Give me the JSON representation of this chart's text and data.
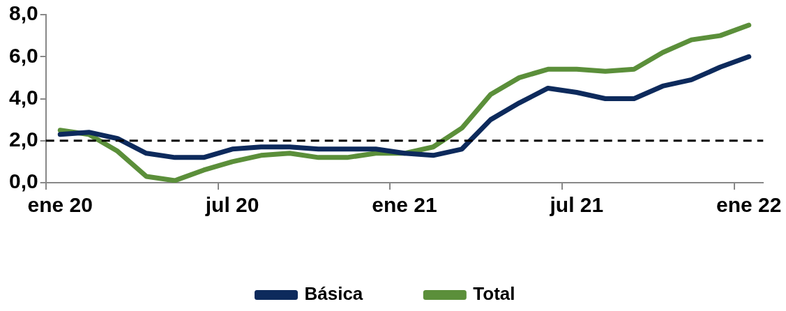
{
  "chart_data": {
    "type": "line",
    "categories": [
      "ene 20",
      null,
      null,
      null,
      null,
      null,
      "jul 20",
      null,
      null,
      null,
      null,
      null,
      "ene 21",
      null,
      null,
      null,
      null,
      null,
      "jul 21",
      null,
      null,
      null,
      null,
      null,
      "ene 22"
    ],
    "series": [
      {
        "name": "Básica",
        "color": "#0d2a5c",
        "values": [
          2.3,
          2.4,
          2.1,
          1.4,
          1.2,
          1.2,
          1.6,
          1.7,
          1.7,
          1.6,
          1.6,
          1.6,
          1.4,
          1.3,
          1.6,
          3.0,
          3.8,
          4.5,
          4.3,
          4.0,
          4.0,
          4.6,
          4.9,
          5.5,
          6.0
        ]
      },
      {
        "name": "Total",
        "color": "#5b8f3a",
        "values": [
          2.5,
          2.3,
          1.5,
          0.3,
          0.1,
          0.6,
          1.0,
          1.3,
          1.4,
          1.2,
          1.2,
          1.4,
          1.4,
          1.7,
          2.6,
          4.2,
          5.0,
          5.4,
          5.4,
          5.3,
          5.4,
          6.2,
          6.8,
          7.0,
          7.5
        ]
      }
    ],
    "ylim": [
      0,
      8
    ],
    "yticks": [
      {
        "value": 0,
        "label": "0,0"
      },
      {
        "value": 2,
        "label": "2,0"
      },
      {
        "value": 4,
        "label": "4,0"
      },
      {
        "value": 6,
        "label": "6,0"
      },
      {
        "value": 8,
        "label": "8,0"
      }
    ],
    "ref_lines": [
      {
        "axis": "y",
        "value": 2,
        "label": null,
        "color": "#000000",
        "line_style": "dashed"
      }
    ],
    "grid": false,
    "legend": "bottom",
    "marker": "none",
    "line_style": "solid"
  }
}
